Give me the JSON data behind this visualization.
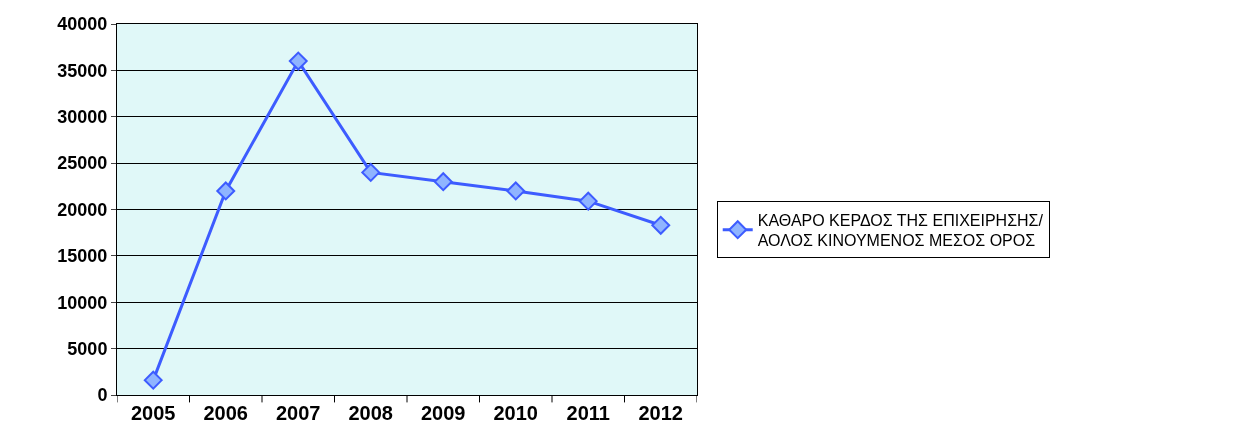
{
  "chart_data": {
    "type": "line",
    "categories": [
      "2005",
      "2006",
      "2007",
      "2008",
      "2009",
      "2010",
      "2011",
      "2012"
    ],
    "series": [
      {
        "name": "ΚΑΘΑΡΟ ΚΕΡΔΟΣ ΤΗΣ ΕΠΙΧΕΙΡΗΣΗΣ/ ΑΟΛΟΣ ΚΙΝΟΥΜΕΝΟΣ ΜΕΣΟΣ ΟΡΟΣ",
        "color": "#3d5cff",
        "values": [
          1600,
          22000,
          36000,
          24000,
          23000,
          22000,
          20900,
          18300
        ]
      }
    ],
    "ylim": [
      0,
      40000
    ],
    "yticks": [
      0,
      5000,
      10000,
      15000,
      20000,
      25000,
      30000,
      35000,
      40000
    ],
    "grid": "y",
    "legend": "right",
    "marker": "diamond",
    "line_style": "solid"
  }
}
